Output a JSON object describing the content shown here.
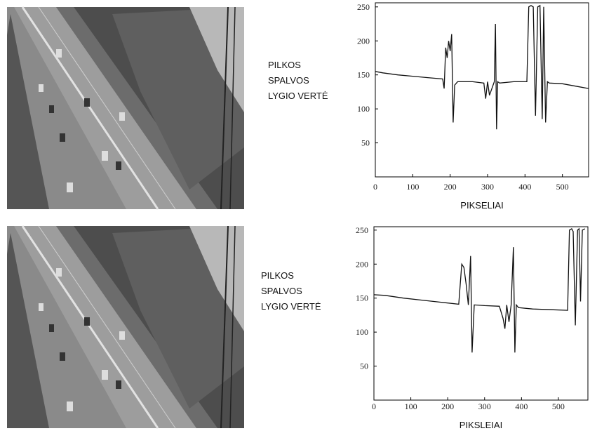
{
  "chart_data": [
    {
      "type": "line",
      "y_label": [
        "PILKOS",
        "SPALVOS",
        "LYGIO VERTĖ"
      ],
      "x_label": "PIKSELIAI",
      "x": [
        0,
        20,
        60,
        100,
        140,
        180,
        184,
        188,
        192,
        196,
        200,
        204,
        208,
        212,
        220,
        260,
        290,
        295,
        300,
        305,
        318,
        321,
        324,
        327,
        332,
        370,
        405,
        410,
        416,
        422,
        428,
        434,
        440,
        446,
        450,
        455,
        460,
        465,
        500,
        540,
        570
      ],
      "values": [
        155,
        153,
        150,
        148,
        146,
        144,
        130,
        190,
        175,
        200,
        185,
        210,
        80,
        135,
        140,
        140,
        138,
        115,
        140,
        120,
        140,
        225,
        70,
        140,
        138,
        140,
        140,
        250,
        252,
        250,
        90,
        250,
        252,
        85,
        250,
        80,
        140,
        138,
        137,
        133,
        130
      ],
      "color": "#111111",
      "xlim": [
        0,
        570
      ],
      "ylim": [
        0,
        256
      ],
      "xticks": [
        0,
        100,
        200,
        300,
        400,
        500
      ],
      "yticks": [
        50,
        100,
        150,
        200,
        250
      ]
    },
    {
      "type": "line",
      "y_label": [
        "PILKOS",
        "SPALVOS",
        "LYGIO VERTĖ"
      ],
      "x_label": "PIKSLEIAI",
      "x": [
        0,
        30,
        80,
        130,
        180,
        230,
        238,
        244,
        250,
        256,
        262,
        266,
        272,
        300,
        340,
        350,
        355,
        360,
        366,
        372,
        378,
        382,
        386,
        392,
        430,
        480,
        525,
        530,
        536,
        540,
        546,
        552,
        556,
        560,
        565,
        572
      ],
      "values": [
        155,
        154,
        150,
        147,
        144,
        141,
        200,
        195,
        170,
        140,
        212,
        70,
        140,
        139,
        138,
        120,
        105,
        140,
        115,
        140,
        225,
        70,
        140,
        136,
        134,
        133,
        132,
        250,
        252,
        248,
        110,
        250,
        252,
        145,
        250,
        252
      ],
      "color": "#111111",
      "xlim": [
        0,
        580
      ],
      "ylim": [
        0,
        255
      ],
      "xticks": [
        0,
        100,
        200,
        300,
        400,
        500
      ],
      "yticks": [
        50,
        100,
        150,
        200,
        250
      ]
    }
  ]
}
